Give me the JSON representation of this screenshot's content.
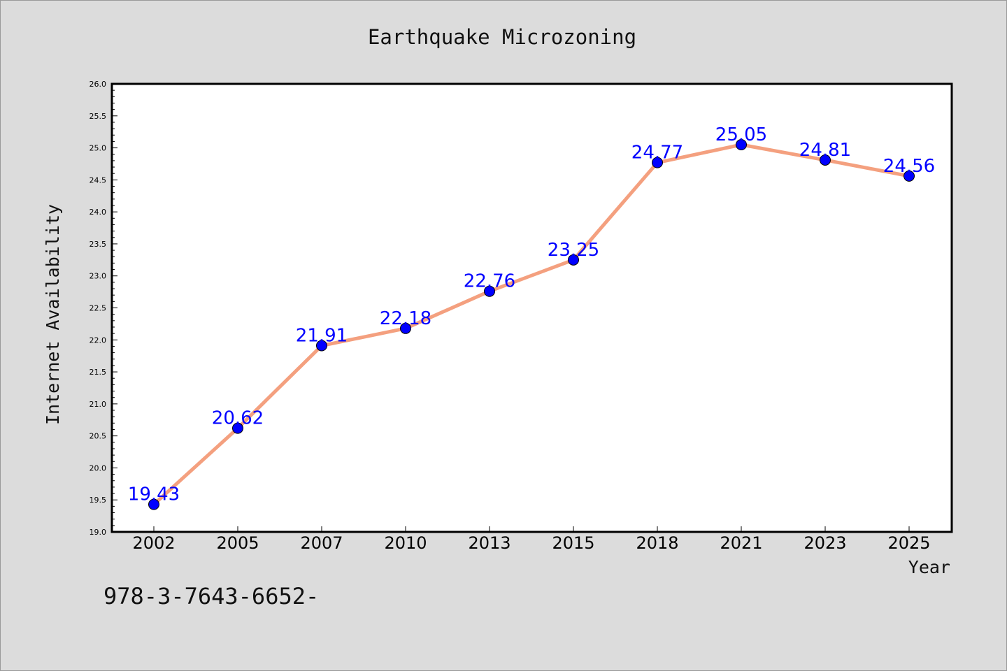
{
  "chart_data": {
    "type": "line",
    "title": "Earthquake Microzoning",
    "xlabel": "Year",
    "ylabel": "Internet Availability",
    "categories": [
      "2002",
      "2005",
      "2007",
      "2010",
      "2013",
      "2015",
      "2018",
      "2021",
      "2023",
      "2025"
    ],
    "series": [
      {
        "values": [
          19.43,
          20.62,
          21.91,
          22.18,
          22.76,
          23.25,
          24.77,
          25.05,
          24.81,
          24.56
        ],
        "data_labels": [
          "19.43",
          "20.62",
          "21.91",
          "22.18",
          "22.76",
          "23.25",
          "24.77",
          "25.05",
          "24.81",
          "24.56"
        ],
        "line_color": "#f4a07f",
        "marker_color": "#0000ff"
      }
    ],
    "ylim": [
      19.0,
      26.0
    ],
    "yticks": [
      "19.0",
      "19.5",
      "20.0",
      "20.5",
      "21.0",
      "21.5",
      "22.0",
      "22.5",
      "23.0",
      "23.5",
      "24.0",
      "24.5",
      "25.0",
      "25.5",
      "26.0"
    ],
    "grid": false,
    "legend": "none"
  },
  "footer_text": "978-3-7643-6652-",
  "colors": {
    "background": "#dcdcdc",
    "plot_background": "#ffffff",
    "data_label": "#0000ff"
  }
}
